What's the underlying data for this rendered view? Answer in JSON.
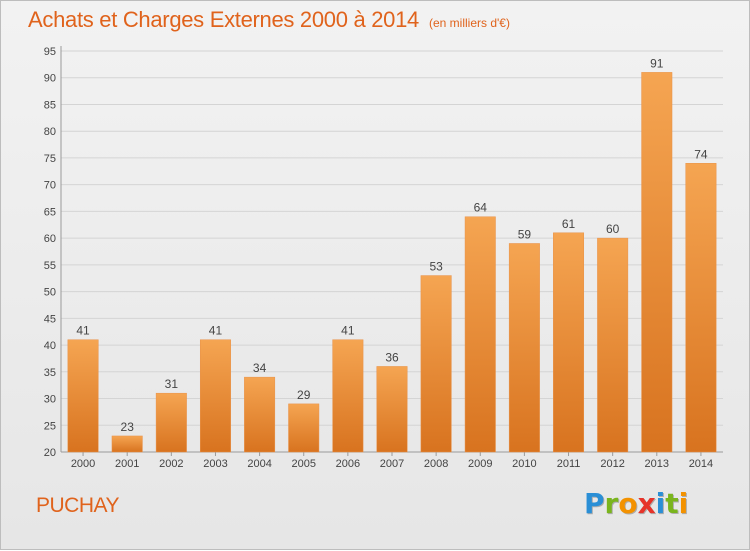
{
  "title": "Achats et Charges Externes 2000 à 2014",
  "subtitle": "(en milliers d'€)",
  "commune": "PUCHAY",
  "logo": {
    "letters": [
      "P",
      "r",
      "o",
      "x",
      "i",
      "t",
      "i"
    ],
    "colors": [
      "#2a8fd6",
      "#7ab51d",
      "#f39200",
      "#e6332a",
      "#2a8fd6",
      "#7ab51d",
      "#f39200"
    ]
  },
  "colors": {
    "accent": "#e0631c",
    "bar_top": "#f5a552",
    "bar_bottom": "#d8731f",
    "grid": "#d4d4d4",
    "axis_text": "#444444"
  },
  "chart_data": {
    "type": "bar",
    "categories": [
      "2000",
      "2001",
      "2002",
      "2003",
      "2004",
      "2005",
      "2006",
      "2007",
      "2008",
      "2009",
      "2010",
      "2011",
      "2012",
      "2013",
      "2014"
    ],
    "values": [
      41,
      23,
      31,
      41,
      34,
      29,
      41,
      36,
      53,
      64,
      59,
      61,
      60,
      91,
      74
    ],
    "ylim": [
      20,
      95
    ],
    "yticks": [
      20,
      25,
      30,
      35,
      40,
      45,
      50,
      55,
      60,
      65,
      70,
      75,
      80,
      85,
      90,
      95
    ],
    "grid": true,
    "data_labels": true
  }
}
